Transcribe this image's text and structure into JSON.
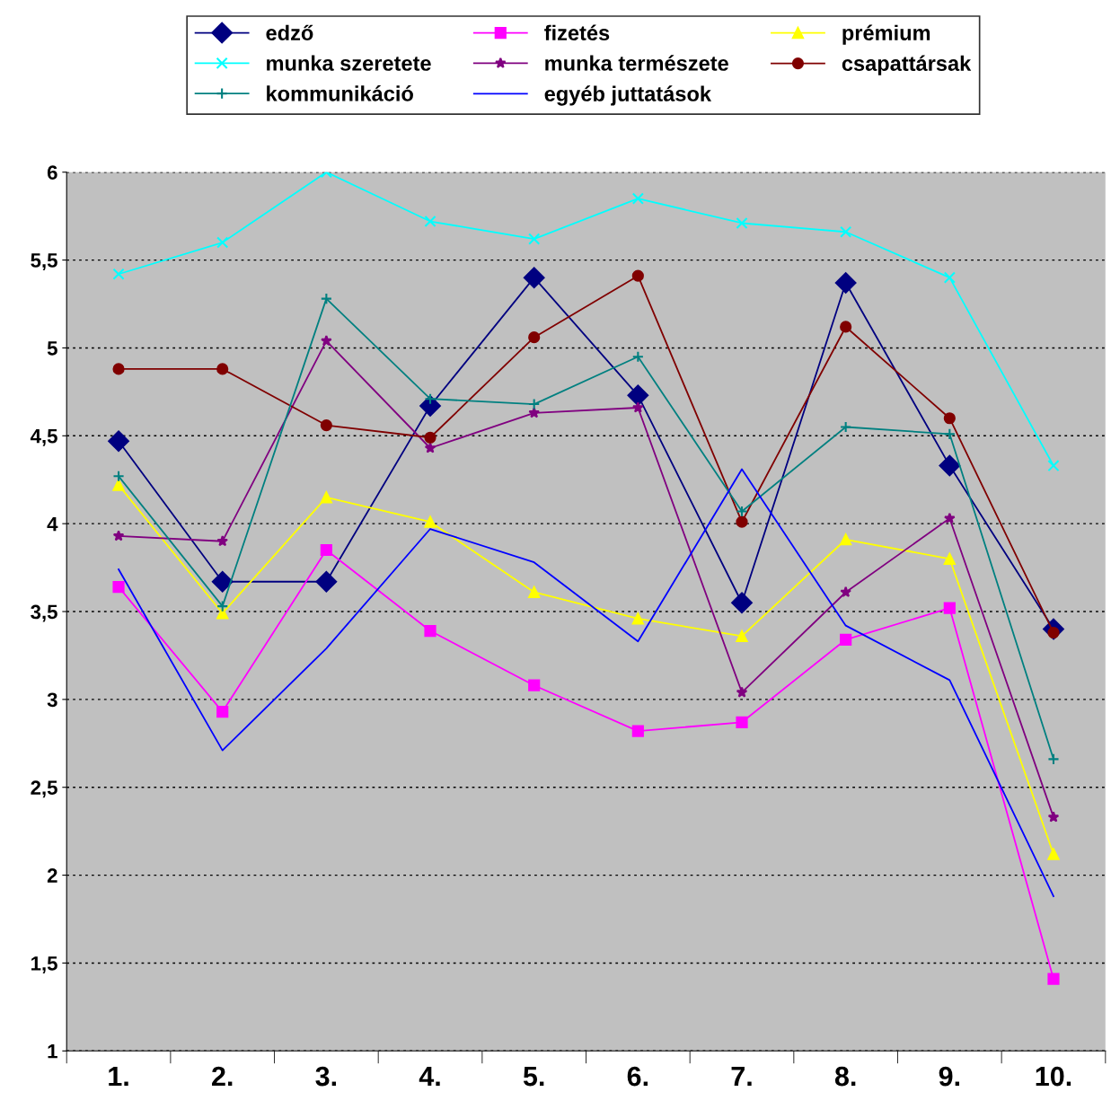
{
  "chart_data": {
    "type": "line",
    "categories": [
      "1.",
      "2.",
      "3.",
      "4.",
      "5.",
      "6.",
      "7.",
      "8.",
      "9.",
      "10."
    ],
    "ylim": [
      1,
      6
    ],
    "yticks": [
      1,
      {
        "value": 1.5,
        "label": "1,5"
      },
      2,
      {
        "value": 2.5,
        "label": "2,5"
      },
      3,
      {
        "value": 3.5,
        "label": "3,5"
      },
      4,
      {
        "value": 4.5,
        "label": "4,5"
      },
      5,
      {
        "value": 5.5,
        "label": "5,5"
      },
      6
    ],
    "grid": "y",
    "legend": "top",
    "line_style": "solid",
    "series": [
      {
        "name": "edző",
        "color": "#000080",
        "marker": "diamond",
        "values": [
          4.47,
          3.67,
          3.67,
          4.67,
          5.4,
          4.73,
          3.55,
          5.37,
          4.33,
          3.4
        ]
      },
      {
        "name": "fizetés",
        "color": "#ff00ff",
        "marker": "square",
        "values": [
          3.64,
          2.93,
          3.85,
          3.39,
          3.08,
          2.82,
          2.87,
          3.34,
          3.52,
          1.41
        ]
      },
      {
        "name": "prémium",
        "color": "#ffff00",
        "marker": "triangle",
        "values": [
          4.22,
          3.49,
          4.15,
          4.01,
          3.61,
          3.46,
          3.36,
          3.91,
          3.8,
          2.12
        ]
      },
      {
        "name": "munka szeretete",
        "color": "#00ffff",
        "marker": "cross",
        "values": [
          5.42,
          5.6,
          6.0,
          5.72,
          5.62,
          5.85,
          5.71,
          5.66,
          5.4,
          4.33
        ]
      },
      {
        "name": "munka természete",
        "color": "#800080",
        "marker": "star",
        "values": [
          3.93,
          3.9,
          5.04,
          4.43,
          4.63,
          4.66,
          3.04,
          3.61,
          4.03,
          2.33
        ]
      },
      {
        "name": "csapattársak",
        "color": "#800000",
        "marker": "circle",
        "values": [
          4.88,
          4.88,
          4.56,
          4.49,
          5.06,
          5.41,
          4.01,
          5.12,
          4.6,
          3.38
        ]
      },
      {
        "name": "kommunikáció",
        "color": "#008080",
        "marker": "plus",
        "values": [
          4.27,
          3.53,
          5.28,
          4.71,
          4.68,
          4.95,
          4.07,
          4.55,
          4.51,
          2.66
        ]
      },
      {
        "name": "egyéb juttatások",
        "color": "#0000ff",
        "marker": "none",
        "values": [
          3.74,
          2.71,
          3.29,
          3.97,
          3.78,
          3.33,
          4.31,
          3.42,
          3.11,
          1.88
        ]
      }
    ]
  }
}
